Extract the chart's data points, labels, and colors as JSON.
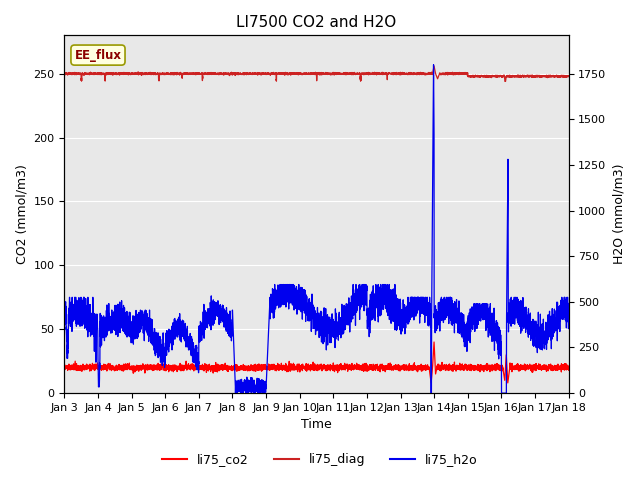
{
  "title": "LI7500 CO2 and H2O",
  "xlabel": "Time",
  "ylabel_left": "CO2 (mmol/m3)",
  "ylabel_right": "H2O (mmol/m3)",
  "annotation_text": "EE_flux",
  "xlim_days": [
    3,
    18
  ],
  "ylim_left": [
    0,
    280
  ],
  "ylim_right": [
    0,
    1960
  ],
  "xtick_labels": [
    "Jan 3",
    "Jan 4",
    "Jan 5",
    "Jan 6",
    "Jan 7",
    "Jan 8",
    "Jan 9",
    "Jan 10",
    "Jan 11",
    "Jan 12",
    "Jan 13",
    "Jan 14",
    "Jan 15",
    "Jan 16",
    "Jan 17",
    "Jan 18"
  ],
  "xtick_positions": [
    3,
    4,
    5,
    6,
    7,
    8,
    9,
    10,
    11,
    12,
    13,
    14,
    15,
    16,
    17,
    18
  ],
  "color_co2": "#FF0000",
  "color_diag": "#CC2222",
  "color_h2o": "#0000EE",
  "bg_color": "#E8E8E8",
  "legend_entries": [
    "li75_co2",
    "li75_diag",
    "li75_h2o"
  ],
  "title_fontsize": 11,
  "axis_label_fontsize": 9,
  "tick_fontsize": 8,
  "linewidth": 0.9
}
